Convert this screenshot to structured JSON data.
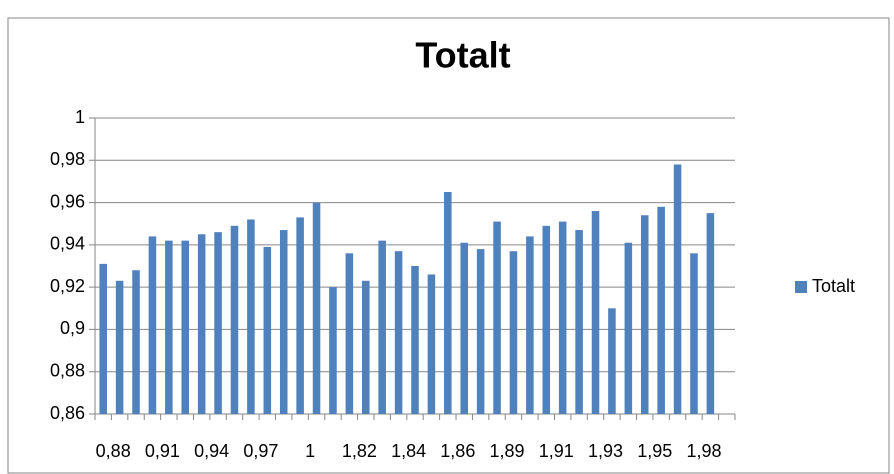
{
  "chart_data": {
    "type": "bar",
    "title": "Totalt",
    "categories": [
      "0,88",
      null,
      null,
      "0,91",
      null,
      null,
      "0,94",
      null,
      null,
      "0,97",
      null,
      null,
      "1",
      null,
      null,
      "1,82",
      null,
      null,
      "1,84",
      null,
      null,
      "1,86",
      null,
      null,
      "1,89",
      null,
      null,
      "1,91",
      null,
      null,
      "1,93",
      null,
      null,
      "1,95",
      null,
      null,
      "1,98",
      null,
      null
    ],
    "series": [
      {
        "name": "Totalt",
        "color": "#4f81bd",
        "values": [
          0.931,
          0.923,
          0.928,
          0.944,
          0.942,
          0.942,
          0.945,
          0.946,
          0.949,
          0.952,
          0.939,
          0.947,
          0.953,
          0.96,
          0.92,
          0.936,
          0.923,
          0.942,
          0.937,
          0.93,
          0.926,
          0.965,
          0.941,
          0.938,
          0.951,
          0.937,
          0.944,
          0.949,
          0.951,
          0.947,
          0.956,
          0.91,
          0.941,
          0.954,
          0.958,
          0.978,
          0.936,
          0.955,
          null
        ]
      }
    ],
    "ylim": [
      0.86,
      1
    ],
    "yticks": [
      {
        "value": 0.86,
        "label": "0,86"
      },
      {
        "value": 0.88,
        "label": "0,88"
      },
      {
        "value": 0.9,
        "label": "0,9"
      },
      {
        "value": 0.92,
        "label": "0,92"
      },
      {
        "value": 0.94,
        "label": "0,94"
      },
      {
        "value": 0.96,
        "label": "0,96"
      },
      {
        "value": 0.98,
        "label": "0,98"
      },
      1
    ],
    "grid": true,
    "legend": "right"
  }
}
